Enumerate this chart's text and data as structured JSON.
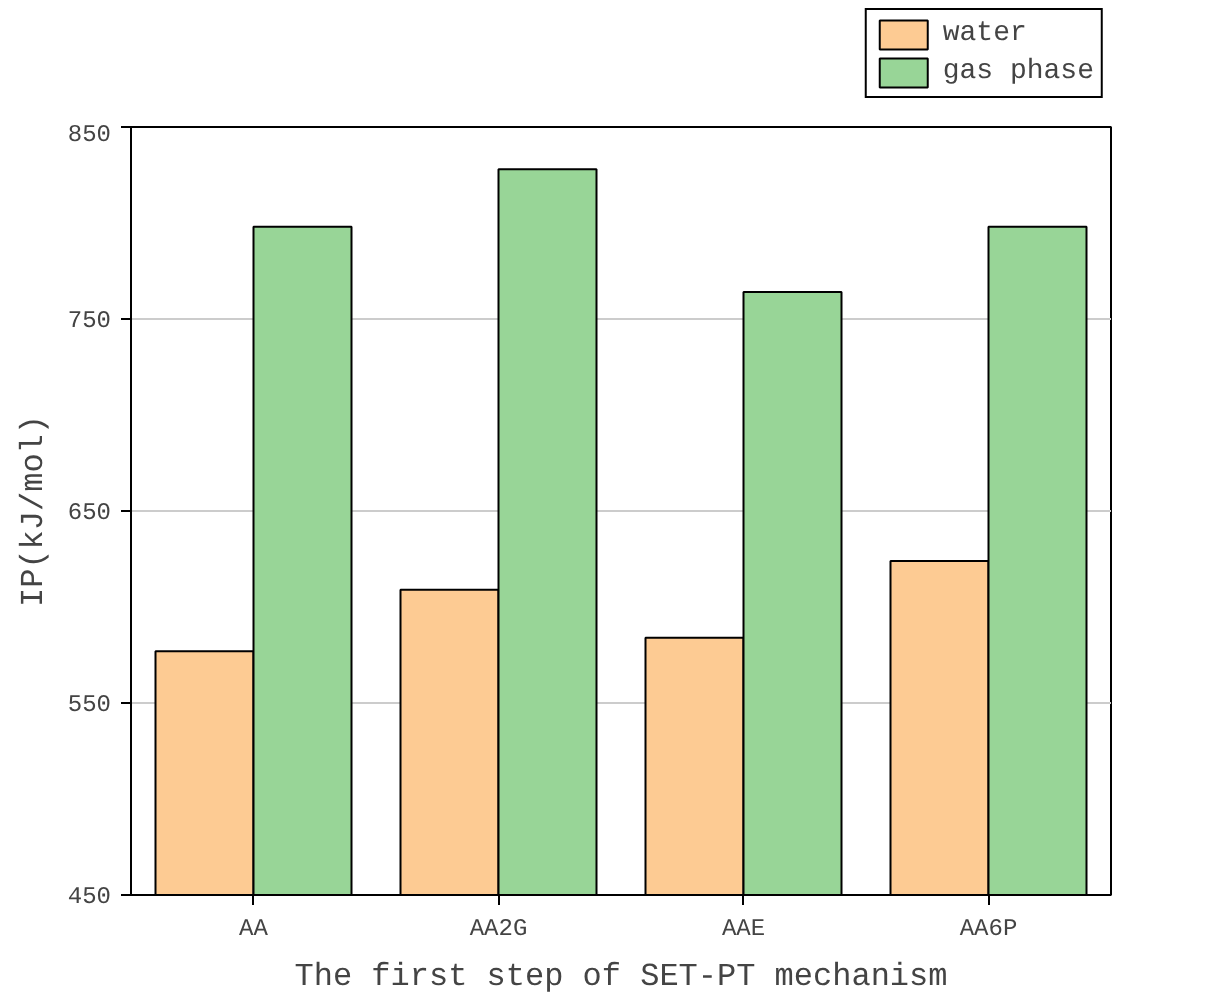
{
  "chart_data": {
    "type": "bar",
    "xlabel": "The first step of SET-PT mechanism",
    "ylabel": "IP(kJ/mol)",
    "categories": [
      "AA",
      "AA2G",
      "AAE",
      "AA6P"
    ],
    "series": [
      {
        "name": "water",
        "color": "#fdcb93",
        "values": [
          577,
          609,
          584,
          624
        ]
      },
      {
        "name": "gas phase",
        "color": "#98d597",
        "values": [
          798,
          828,
          764,
          798
        ]
      }
    ],
    "ylim": [
      450,
      850
    ],
    "yticks": [
      450,
      550,
      650,
      750,
      850
    ],
    "grid": "y",
    "legend": "top right"
  }
}
